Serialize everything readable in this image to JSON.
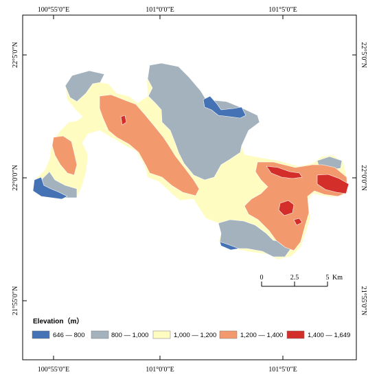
{
  "map": {
    "coord_labels": {
      "top": [
        "100°55′0″E",
        "101°0′0″E",
        "101°5′0″E"
      ],
      "bottom": [
        "100°55′0″E",
        "101°0′0″E",
        "101°5′0″E"
      ],
      "left": [
        "22°5′0″N",
        "22°0′0″N",
        "21°55′0″N"
      ],
      "right": [
        "22°5′0″N",
        "22°0′0″N",
        "21°55′0″N"
      ]
    },
    "legend": {
      "title": "Elevation（m）",
      "classes": [
        {
          "label": "646 — 800",
          "color": "#4472b4"
        },
        {
          "label": "800 — 1,000",
          "color": "#a3b2bd"
        },
        {
          "label": "1,000 — 1,200",
          "color": "#fefcc0"
        },
        {
          "label": "1,200 — 1,400",
          "color": "#f29a6e"
        },
        {
          "label": "1,400 — 1,649",
          "color": "#d42e2b"
        }
      ]
    },
    "scale_bar": {
      "labels": [
        "0",
        "2.5",
        "5"
      ],
      "unit": "Km"
    }
  }
}
